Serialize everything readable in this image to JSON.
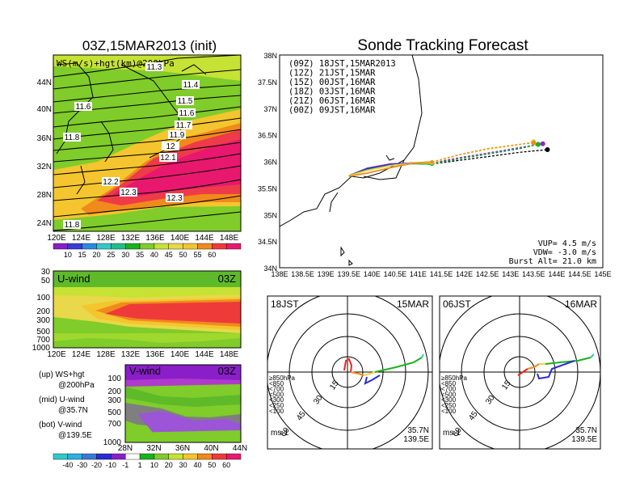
{
  "left_title": "03Z,15MAR2013 (init)",
  "right_title": "Sonde Tracking Forecast",
  "top_map": {
    "label": "WS(m/s)+hgt(km)@200hPa",
    "lat_ticks": [
      "44N",
      "40N",
      "36N",
      "32N",
      "28N",
      "24N"
    ],
    "lon_ticks": [
      "120E",
      "124E",
      "128E",
      "132E",
      "136E",
      "140E",
      "144E",
      "148E"
    ],
    "hgt_labels": [
      "11.3",
      "11.4",
      "11.5",
      "11.6",
      "11.6",
      "11.7",
      "11.8",
      "11.9",
      "12",
      "12.1",
      "12.2",
      "12.3",
      "12.3",
      "11.8"
    ],
    "colorbar": [
      "10",
      "15",
      "20",
      "25",
      "30",
      "35",
      "40",
      "45",
      "50",
      "55",
      "60"
    ]
  },
  "u_panel": {
    "label": "U-wind",
    "time": "03Z",
    "y_ticks": [
      "30",
      "50",
      "100",
      "200",
      "300",
      "500",
      "700",
      "1000"
    ],
    "x_ticks": [
      "120E",
      "124E",
      "128E",
      "132E",
      "136E",
      "140E",
      "144E",
      "148E"
    ]
  },
  "v_panel": {
    "label": "V-wind",
    "time": "03Z",
    "y_ticks": [
      "100",
      "200",
      "300",
      "500",
      "700",
      "1000"
    ],
    "x_ticks": [
      "28N",
      "32N",
      "36N",
      "40N",
      "44N"
    ]
  },
  "legend_notes": [
    {
      "a": "(up) WS+hgt",
      "b": "@200hPa"
    },
    {
      "a": "(mid) U-wind",
      "b": "@35.7N"
    },
    {
      "a": "(bot) V-wind",
      "b": "@139.5E"
    }
  ],
  "v_colorbar": [
    "-40",
    "-30",
    "-20",
    "-10",
    "-1",
    "1",
    "10",
    "20",
    "30",
    "40",
    "50",
    "60"
  ],
  "track_map": {
    "lat_ticks": [
      "38N",
      "37.5N",
      "37N",
      "36.5N",
      "36N",
      "35.5N",
      "35N",
      "34.5N",
      "34N"
    ],
    "lon_ticks": [
      "138E",
      "138.5E",
      "139E",
      "139.5E",
      "140E",
      "140.5E",
      "141E",
      "141.5E",
      "142E",
      "142.5E",
      "143E",
      "143.5E",
      "144E",
      "144.5E",
      "145E"
    ],
    "legend": [
      {
        "text": "(09Z) 18JST,15MAR2013",
        "color": "#000000"
      },
      {
        "text": "(12Z) 21JST,15MAR",
        "color": "#9b1fc9"
      },
      {
        "text": "(15Z) 00JST,16MAR",
        "color": "#2b2bd6"
      },
      {
        "text": "(18Z) 03JST,16MAR",
        "color": "#19b21c"
      },
      {
        "text": "(21Z) 06JST,16MAR",
        "color": "#e8d84a"
      },
      {
        "text": "(00Z) 09JST,16MAR",
        "color": "#f08a1c"
      }
    ],
    "vup": "VUP= 4.5 m/s",
    "vdw": "VDW= -3.0 m/s",
    "burst": "Burst Alt= 21.0 km"
  },
  "hodo_left": {
    "time": "18JST",
    "date": "15MAR",
    "lat": "35.7N",
    "lon": "139.5E",
    "unit": "ms-1",
    "rings": [
      "15",
      "30",
      "45",
      "60"
    ]
  },
  "hodo_right": {
    "time": "06JST",
    "date": "16MAR",
    "lat": "35.7N",
    "lon": "139.5E",
    "unit": "ms-1",
    "rings": [
      "15",
      "30",
      "45",
      "60"
    ]
  },
  "hodo_levels": [
    {
      "text": "≥850hPa",
      "color": "#e8241c"
    },
    {
      "text": "<850",
      "color": "#f08a1c"
    },
    {
      "text": "<700",
      "color": "#e8d84a"
    },
    {
      "text": "<500",
      "color": "#19b21c"
    },
    {
      "text": "<300",
      "color": "#31c9c9"
    },
    {
      "text": "<250",
      "color": "#2bb0e0"
    },
    {
      "text": "<100",
      "color": "#2b2bd6"
    }
  ],
  "chart_data": {
    "type": "line",
    "title": "Sonde Tracking Forecast",
    "xlim": [
      138,
      145
    ],
    "ylim": [
      34,
      38
    ],
    "series": [
      {
        "name": "(09Z) 18JST,15MAR2013",
        "color": "#000000",
        "x": [
          139.5,
          139.9,
          140.4,
          140.9,
          141.3,
          141.9,
          142.6,
          143.2,
          143.8
        ],
        "y": [
          35.73,
          35.86,
          35.94,
          35.96,
          35.95,
          36.02,
          36.1,
          36.17,
          36.22
        ]
      },
      {
        "name": "(12Z) 21JST,15MAR",
        "color": "#9b1fc9",
        "x": [
          139.5,
          139.9,
          140.4,
          140.9,
          141.3,
          141.9,
          142.6,
          143.2,
          143.7
        ],
        "y": [
          35.73,
          35.87,
          35.95,
          35.97,
          35.97,
          36.07,
          36.17,
          36.26,
          36.33
        ]
      },
      {
        "name": "(15Z) 00JST,16MAR",
        "color": "#2b2bd6",
        "x": [
          139.5,
          139.9,
          140.4,
          140.9,
          141.3,
          141.9,
          142.6,
          143.2,
          143.6
        ],
        "y": [
          35.73,
          35.86,
          35.94,
          35.97,
          35.96,
          36.05,
          36.15,
          36.24,
          36.32
        ]
      },
      {
        "name": "(18Z) 03JST,16MAR",
        "color": "#19b21c",
        "x": [
          139.5,
          139.9,
          140.4,
          140.9,
          141.3,
          141.9,
          142.6,
          143.2,
          143.6
        ],
        "y": [
          35.73,
          35.84,
          35.92,
          35.96,
          35.95,
          36.05,
          36.16,
          36.25,
          36.32
        ]
      },
      {
        "name": "(21Z) 06JST,16MAR",
        "color": "#e8d84a",
        "x": [
          139.5,
          139.9,
          140.4,
          140.9,
          141.3,
          141.9,
          142.5,
          143.1,
          143.5
        ],
        "y": [
          35.73,
          35.83,
          35.92,
          35.97,
          35.97,
          36.12,
          36.22,
          36.3,
          36.37
        ]
      },
      {
        "name": "(00Z) 09JST,16MAR",
        "color": "#f08a1c",
        "x": [
          139.5,
          139.9,
          140.4,
          140.9,
          141.3,
          141.9,
          142.5,
          143.1,
          143.5
        ],
        "y": [
          35.72,
          35.78,
          35.88,
          35.97,
          35.99,
          36.13,
          36.24,
          36.31,
          36.35
        ]
      }
    ]
  }
}
